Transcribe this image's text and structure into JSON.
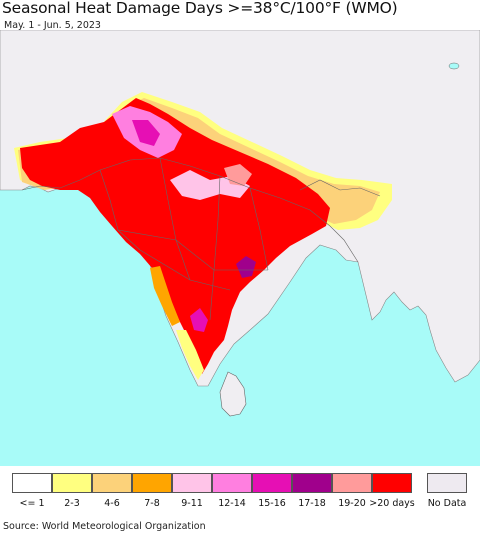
{
  "header": {
    "title": "Seasonal Heat Damage Days >=38°C/100°F (WMO)",
    "subtitle": "May. 1 - Jun. 5, 2023"
  },
  "legend": {
    "items": [
      {
        "label": "<= 1",
        "color": "#ffffff"
      },
      {
        "label": "2-3",
        "color": "#ffff80"
      },
      {
        "label": "4-6",
        "color": "#fcd27a"
      },
      {
        "label": "7-8",
        "color": "#ffa500"
      },
      {
        "label": "9-11",
        "color": "#ffc4e8"
      },
      {
        "label": "12-14",
        "color": "#ff7fe0"
      },
      {
        "label": "15-16",
        "color": "#e60fb4"
      },
      {
        "label": "17-18",
        "color": "#a0008c"
      },
      {
        "label": "19-20",
        "color": "#ff9b9b"
      },
      {
        "label": ">20 days",
        "color": "#ff0000"
      }
    ],
    "no_data": {
      "label": "No Data",
      "color": "#eeeaf0"
    }
  },
  "footer": {
    "source": "Source: World Meteorological Organization"
  },
  "colors": {
    "ocean": "#a8fbf8",
    "land_no_data": "#f0eef2",
    "border": "#666666"
  }
}
